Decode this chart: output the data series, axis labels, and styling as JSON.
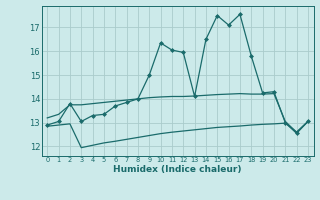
{
  "xlabel": "Humidex (Indice chaleur)",
  "bg_color": "#cceaea",
  "grid_color": "#aacccc",
  "line_color": "#1a6b6b",
  "x_ticks": [
    0,
    1,
    2,
    3,
    4,
    5,
    6,
    7,
    8,
    9,
    10,
    11,
    12,
    13,
    14,
    15,
    16,
    17,
    18,
    19,
    20,
    21,
    22,
    23
  ],
  "y_ticks": [
    12,
    13,
    14,
    15,
    16,
    17
  ],
  "xlim": [
    -0.5,
    23.5
  ],
  "ylim": [
    11.6,
    17.9
  ],
  "line1_x": [
    0,
    1,
    2,
    3,
    4,
    5,
    6,
    7,
    8,
    9,
    10,
    11,
    12,
    13,
    14,
    15,
    16,
    17,
    18,
    19,
    20,
    21,
    22,
    23
  ],
  "line1_y": [
    12.9,
    13.05,
    13.8,
    13.05,
    13.3,
    13.35,
    13.7,
    13.85,
    14.0,
    15.0,
    16.35,
    16.05,
    15.95,
    14.1,
    16.5,
    17.5,
    17.1,
    17.55,
    15.8,
    14.25,
    14.3,
    13.0,
    12.55,
    13.05
  ],
  "line2_x": [
    0,
    1,
    2,
    3,
    4,
    5,
    6,
    7,
    8,
    9,
    10,
    11,
    12,
    13,
    14,
    15,
    16,
    17,
    18,
    19,
    20,
    21,
    22,
    23
  ],
  "line2_y": [
    13.2,
    13.35,
    13.75,
    13.75,
    13.8,
    13.85,
    13.9,
    13.95,
    14.0,
    14.05,
    14.08,
    14.1,
    14.1,
    14.12,
    14.15,
    14.18,
    14.2,
    14.22,
    14.2,
    14.2,
    14.22,
    13.05,
    12.6,
    13.05
  ],
  "line3_x": [
    0,
    1,
    2,
    3,
    4,
    5,
    6,
    7,
    8,
    9,
    10,
    11,
    12,
    13,
    14,
    15,
    16,
    17,
    18,
    19,
    20,
    21,
    22,
    23
  ],
  "line3_y": [
    12.85,
    12.9,
    12.95,
    11.95,
    12.05,
    12.15,
    12.22,
    12.3,
    12.38,
    12.46,
    12.54,
    12.6,
    12.65,
    12.7,
    12.75,
    12.8,
    12.83,
    12.86,
    12.9,
    12.93,
    12.95,
    12.98,
    12.6,
    13.05
  ]
}
